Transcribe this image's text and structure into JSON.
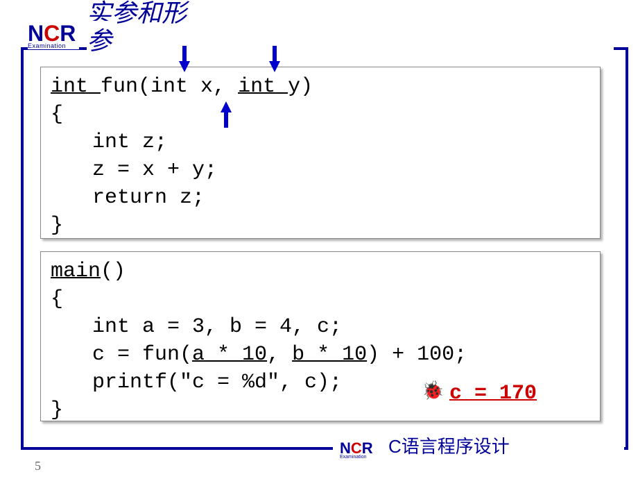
{
  "header": {
    "chinese_line1": "实参和形",
    "chinese_line2": "参",
    "logo_n": "N",
    "logo_c": "C",
    "logo_r": "R",
    "logo_sub": "Examination"
  },
  "code1": {
    "l1a": "int ",
    "l1b": "fun(int x, ",
    "l1c": "int ",
    "l1d": "y)",
    "l2": "{",
    "l3": "int z;",
    "l4": "z = x + y;",
    "l5": "return z;",
    "l6": "}"
  },
  "code2": {
    "l1a": "main",
    "l1b": "()",
    "l2": "{",
    "l3": "int a = 3, b = 4, c;",
    "l4a": "c = fun(",
    "l4b": "a * 10",
    "l4c": ", ",
    "l4d": "b * 10",
    "l4e": ") + 100;",
    "l5": "printf(\"c = %d\", c);",
    "l6": "}"
  },
  "result": {
    "bug": "🐞",
    "text": "c = 170"
  },
  "footer": {
    "page": "5",
    "logo_n": "N",
    "logo_c": "C",
    "logo_r": "R",
    "logo_sub": "Examination",
    "text": "C语言程序设计"
  },
  "colors": {
    "frame": "#000099",
    "arrow": "#0000cc",
    "result": "#cc0000",
    "logo_red": "#cc0000",
    "logo_blue": "#000099"
  }
}
